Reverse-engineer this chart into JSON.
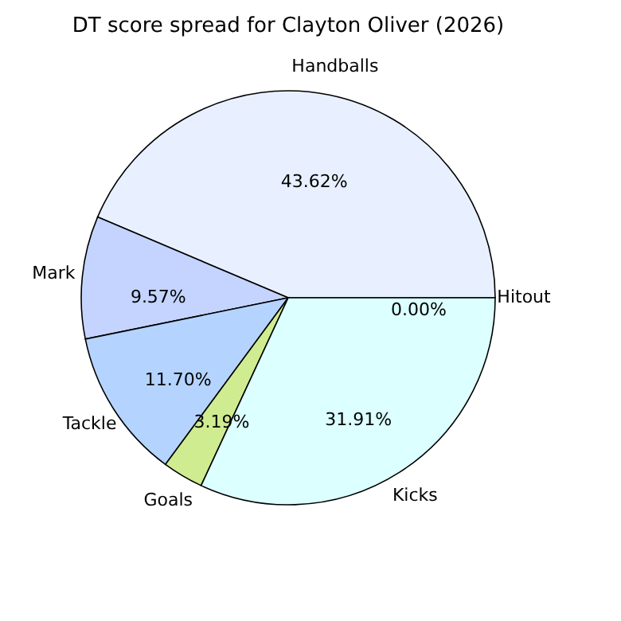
{
  "chart_data": {
    "type": "pie",
    "title": "DT score spread for Clayton Oliver (2026)",
    "categories": [
      "Hitout",
      "Handballs",
      "Mark",
      "Tackle",
      "Goals",
      "Kicks"
    ],
    "values": [
      0.0,
      43.62,
      9.57,
      11.7,
      3.19,
      31.91
    ],
    "colors": [
      "#f0f0ff",
      "#e8f0ff",
      "#c4d4ff",
      "#b4d4ff",
      "#d0ec90",
      "#dcffff"
    ],
    "value_labels": [
      "0.00%",
      "43.62%",
      "9.57%",
      "11.70%",
      "3.19%",
      "31.91%"
    ]
  }
}
